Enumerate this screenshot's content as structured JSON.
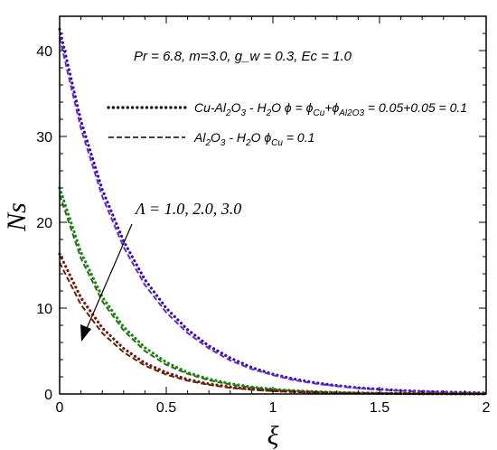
{
  "chart_data": {
    "type": "line",
    "xlabel": "ξ",
    "ylabel": "Ns",
    "xlim": [
      0,
      2
    ],
    "ylim": [
      0,
      44
    ],
    "xticks": [
      0,
      0.5,
      1,
      1.5,
      2
    ],
    "xtick_labels": [
      "0",
      "0.5",
      "1",
      "1.5",
      "2"
    ],
    "yticks": [
      0,
      10,
      20,
      30,
      40
    ],
    "ytick_labels": [
      "0",
      "10",
      "20",
      "30",
      "40"
    ],
    "grid": false,
    "parameters_text": "Pr = 6.8, m=3.0, g_w = 0.3, Ec = 1.0",
    "legend": {
      "entries": [
        {
          "style": "dotted",
          "label_parts": [
            "Cu-Al",
            "2",
            "O",
            "3",
            " - H",
            "2",
            "O  ϕ = ϕ",
            "Cu",
            "+ϕ",
            "Al2O3",
            " = 0.05+0.05 = 0.1"
          ]
        },
        {
          "style": "dashed",
          "label_parts": [
            "Al",
            "2",
            "O",
            "3",
            " - H",
            "2",
            "O  ϕ",
            "Cu",
            " = 0.1"
          ]
        }
      ]
    },
    "annotation": "Λ = 1.0, 2.0, 3.0",
    "x": [
      0,
      0.1,
      0.2,
      0.3,
      0.4,
      0.5,
      0.6,
      0.7,
      0.8,
      0.9,
      1.0,
      1.1,
      1.2,
      1.3,
      1.4,
      1.5,
      1.6,
      1.7,
      1.8,
      1.9,
      2.0
    ],
    "series": [
      {
        "style": "dotted",
        "color": "#3a0fa0",
        "values": [
          42.5,
          31.8,
          23.8,
          17.8,
          13.3,
          10.0,
          7.5,
          5.6,
          4.2,
          3.1,
          2.3,
          1.75,
          1.3,
          0.98,
          0.73,
          0.55,
          0.41,
          0.31,
          0.23,
          0.17,
          0.13
        ]
      },
      {
        "style": "dashed",
        "color": "#6a2bc8",
        "values": [
          41.5,
          30.9,
          23.0,
          17.1,
          12.7,
          9.5,
          7.1,
          5.3,
          3.9,
          2.9,
          2.2,
          1.6,
          1.2,
          0.9,
          0.67,
          0.5,
          0.37,
          0.28,
          0.21,
          0.15,
          0.11
        ]
      },
      {
        "style": "dotted",
        "color": "#1a8a1a",
        "values": [
          24.0,
          16.5,
          11.3,
          7.8,
          5.4,
          3.7,
          2.5,
          1.75,
          1.2,
          0.82,
          0.56,
          0.39,
          0.27,
          0.18,
          0.13,
          0.09,
          0.06,
          0.04,
          0.03,
          0.02,
          0.01
        ]
      },
      {
        "style": "dashed",
        "color": "#2d6e12",
        "values": [
          23.2,
          15.8,
          10.8,
          7.4,
          5.0,
          3.4,
          2.35,
          1.6,
          1.1,
          0.75,
          0.51,
          0.35,
          0.24,
          0.16,
          0.11,
          0.08,
          0.05,
          0.04,
          0.02,
          0.02,
          0.01
        ]
      },
      {
        "style": "dotted",
        "color": "#7a1515",
        "values": [
          16.3,
          11.2,
          7.7,
          5.3,
          3.6,
          2.5,
          1.7,
          1.18,
          0.81,
          0.56,
          0.38,
          0.26,
          0.18,
          0.12,
          0.09,
          0.06,
          0.04,
          0.03,
          0.02,
          0.01,
          0.01
        ]
      },
      {
        "style": "dashed",
        "color": "#5a2a0a",
        "values": [
          15.3,
          10.4,
          7.1,
          4.85,
          3.3,
          2.25,
          1.55,
          1.06,
          0.72,
          0.5,
          0.34,
          0.23,
          0.16,
          0.11,
          0.07,
          0.05,
          0.03,
          0.02,
          0.02,
          0.01,
          0.01
        ]
      }
    ]
  }
}
